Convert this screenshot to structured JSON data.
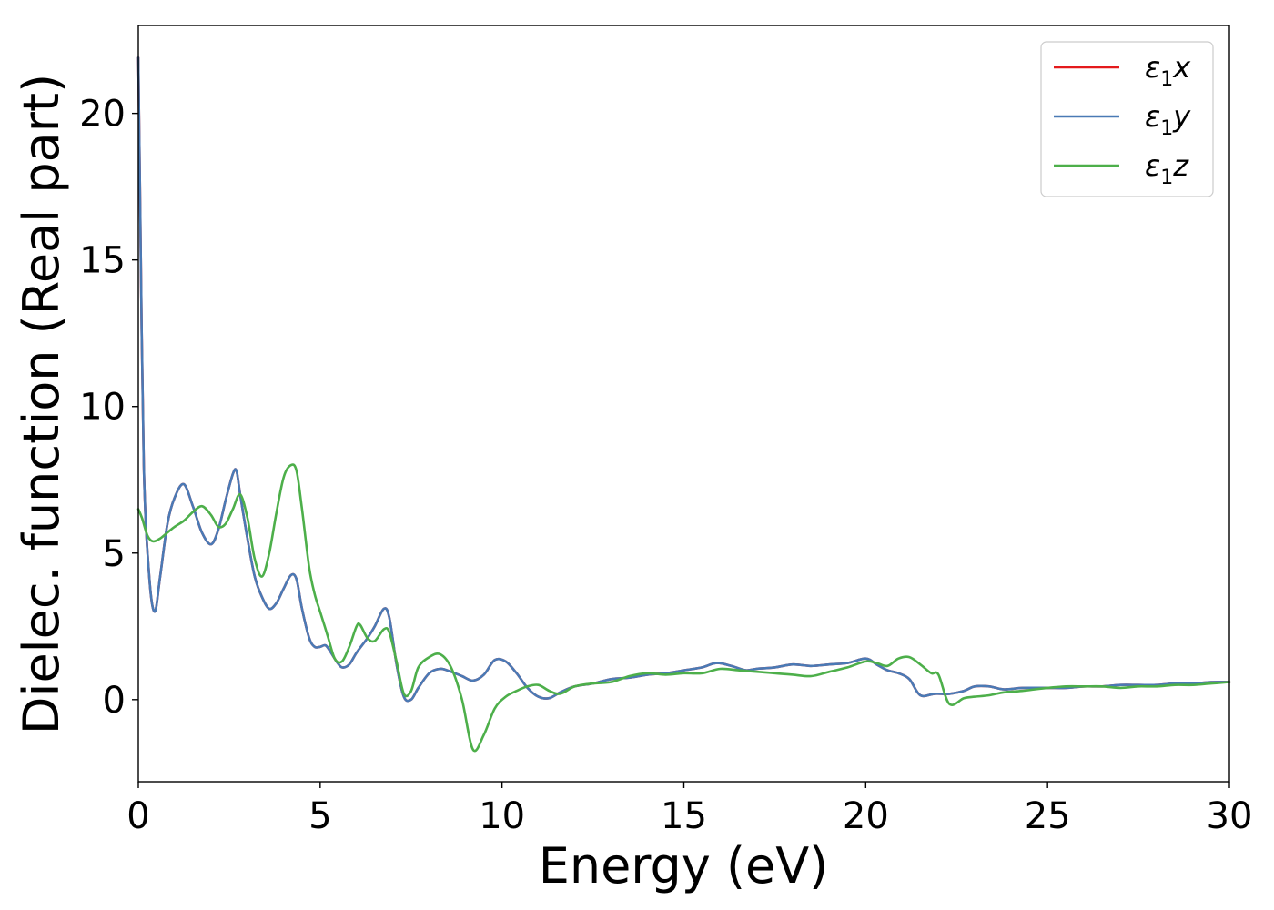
{
  "chart_data": {
    "type": "line",
    "title": "",
    "xlabel": "Energy (eV)",
    "ylabel": "Dielec. function (Real part)",
    "xlim": [
      0,
      30
    ],
    "ylim": [
      -2.8,
      23.0
    ],
    "xticks": [
      0,
      5,
      10,
      15,
      20,
      25,
      30
    ],
    "yticks": [
      0,
      5,
      10,
      15,
      20
    ],
    "grid": false,
    "legend_position": "top-right",
    "series": [
      {
        "name": "ε1x",
        "legend_main": "ε",
        "legend_sub": "1",
        "legend_tail": "x",
        "color": "#e41a1c",
        "x": [
          0.0,
          0.05,
          0.15,
          0.3,
          0.45,
          0.6,
          0.8,
          1.0,
          1.25,
          1.5,
          1.75,
          2.0,
          2.2,
          2.4,
          2.6,
          2.7,
          2.8,
          3.0,
          3.2,
          3.4,
          3.6,
          3.8,
          4.0,
          4.2,
          4.35,
          4.5,
          4.7,
          4.85,
          5.0,
          5.15,
          5.3,
          5.45,
          5.6,
          5.8,
          6.0,
          6.3,
          6.5,
          6.75,
          6.9,
          7.1,
          7.3,
          7.5,
          7.7,
          8.0,
          8.3,
          8.6,
          8.9,
          9.2,
          9.5,
          9.8,
          10.1,
          10.4,
          10.7,
          11.0,
          11.3,
          11.6,
          12.0,
          12.5,
          13.0,
          13.5,
          14.0,
          14.5,
          15.0,
          15.5,
          15.9,
          16.3,
          16.7,
          17.0,
          17.5,
          18.0,
          18.5,
          19.0,
          19.5,
          20.0,
          20.3,
          20.6,
          20.9,
          21.2,
          21.5,
          21.9,
          22.3,
          22.7,
          23.0,
          23.4,
          23.8,
          24.3,
          25.0,
          25.5,
          26.0,
          26.5,
          27.0,
          27.5,
          28.0,
          28.5,
          29.0,
          29.5,
          30.0
        ],
        "y": [
          21.9,
          17.0,
          8.0,
          4.2,
          3.0,
          4.2,
          6.0,
          6.9,
          7.35,
          6.6,
          5.7,
          5.3,
          5.8,
          6.8,
          7.7,
          7.8,
          7.0,
          5.5,
          4.2,
          3.5,
          3.1,
          3.3,
          3.8,
          4.25,
          4.1,
          3.1,
          2.1,
          1.8,
          1.8,
          1.85,
          1.6,
          1.3,
          1.1,
          1.2,
          1.6,
          2.1,
          2.5,
          3.1,
          2.8,
          1.2,
          0.1,
          0.0,
          0.4,
          0.9,
          1.05,
          0.95,
          0.8,
          0.65,
          0.85,
          1.35,
          1.3,
          0.9,
          0.4,
          0.1,
          0.05,
          0.25,
          0.45,
          0.55,
          0.7,
          0.75,
          0.85,
          0.9,
          1.0,
          1.1,
          1.25,
          1.15,
          1.0,
          1.05,
          1.1,
          1.2,
          1.15,
          1.2,
          1.25,
          1.4,
          1.2,
          1.0,
          0.9,
          0.7,
          0.15,
          0.2,
          0.2,
          0.3,
          0.45,
          0.45,
          0.35,
          0.4,
          0.4,
          0.4,
          0.45,
          0.45,
          0.5,
          0.5,
          0.5,
          0.55,
          0.55,
          0.6,
          0.6
        ]
      },
      {
        "name": "ε1y",
        "legend_main": "ε",
        "legend_sub": "1",
        "legend_tail": "y",
        "color": "#4a7ab5",
        "x": [
          0.0,
          0.05,
          0.15,
          0.3,
          0.45,
          0.6,
          0.8,
          1.0,
          1.25,
          1.5,
          1.75,
          2.0,
          2.2,
          2.4,
          2.6,
          2.7,
          2.8,
          3.0,
          3.2,
          3.4,
          3.6,
          3.8,
          4.0,
          4.2,
          4.35,
          4.5,
          4.7,
          4.85,
          5.0,
          5.15,
          5.3,
          5.45,
          5.6,
          5.8,
          6.0,
          6.3,
          6.5,
          6.75,
          6.9,
          7.1,
          7.3,
          7.5,
          7.7,
          8.0,
          8.3,
          8.6,
          8.9,
          9.2,
          9.5,
          9.8,
          10.1,
          10.4,
          10.7,
          11.0,
          11.3,
          11.6,
          12.0,
          12.5,
          13.0,
          13.5,
          14.0,
          14.5,
          15.0,
          15.5,
          15.9,
          16.3,
          16.7,
          17.0,
          17.5,
          18.0,
          18.5,
          19.0,
          19.5,
          20.0,
          20.3,
          20.6,
          20.9,
          21.2,
          21.5,
          21.9,
          22.3,
          22.7,
          23.0,
          23.4,
          23.8,
          24.3,
          25.0,
          25.5,
          26.0,
          26.5,
          27.0,
          27.5,
          28.0,
          28.5,
          29.0,
          29.5,
          30.0
        ],
        "y": [
          21.9,
          17.0,
          8.0,
          4.2,
          3.0,
          4.2,
          6.0,
          6.9,
          7.35,
          6.6,
          5.7,
          5.3,
          5.8,
          6.8,
          7.7,
          7.8,
          7.0,
          5.5,
          4.2,
          3.5,
          3.1,
          3.3,
          3.8,
          4.25,
          4.1,
          3.1,
          2.1,
          1.8,
          1.8,
          1.85,
          1.6,
          1.3,
          1.1,
          1.2,
          1.6,
          2.1,
          2.5,
          3.1,
          2.8,
          1.2,
          0.1,
          0.0,
          0.4,
          0.9,
          1.05,
          0.95,
          0.8,
          0.65,
          0.85,
          1.35,
          1.3,
          0.9,
          0.4,
          0.1,
          0.05,
          0.25,
          0.45,
          0.55,
          0.7,
          0.75,
          0.85,
          0.9,
          1.0,
          1.1,
          1.25,
          1.15,
          1.0,
          1.05,
          1.1,
          1.2,
          1.15,
          1.2,
          1.25,
          1.4,
          1.2,
          1.0,
          0.9,
          0.7,
          0.15,
          0.2,
          0.2,
          0.3,
          0.45,
          0.45,
          0.35,
          0.4,
          0.4,
          0.4,
          0.45,
          0.45,
          0.5,
          0.5,
          0.5,
          0.55,
          0.55,
          0.6,
          0.6
        ]
      },
      {
        "name": "ε1z",
        "legend_main": "ε",
        "legend_sub": "1",
        "legend_tail": "z",
        "color": "#4daf4a",
        "x": [
          0.0,
          0.1,
          0.25,
          0.4,
          0.6,
          0.8,
          1.0,
          1.25,
          1.5,
          1.75,
          2.0,
          2.2,
          2.4,
          2.6,
          2.8,
          3.0,
          3.2,
          3.4,
          3.6,
          3.8,
          4.0,
          4.2,
          4.35,
          4.5,
          4.7,
          4.85,
          5.0,
          5.2,
          5.4,
          5.6,
          5.8,
          6.0,
          6.1,
          6.3,
          6.5,
          6.75,
          6.9,
          7.1,
          7.3,
          7.5,
          7.7,
          8.0,
          8.3,
          8.6,
          8.9,
          9.2,
          9.5,
          9.8,
          10.1,
          10.4,
          10.7,
          11.0,
          11.3,
          11.6,
          12.0,
          12.5,
          13.0,
          13.5,
          14.0,
          14.5,
          15.0,
          15.5,
          16.0,
          16.5,
          17.0,
          17.5,
          18.0,
          18.5,
          19.0,
          19.5,
          20.0,
          20.3,
          20.6,
          20.9,
          21.2,
          21.5,
          21.8,
          22.0,
          22.3,
          22.7,
          23.0,
          23.4,
          23.8,
          24.3,
          25.0,
          25.5,
          26.0,
          26.5,
          27.0,
          27.5,
          28.0,
          28.5,
          29.0,
          29.5,
          30.0
        ],
        "y": [
          6.5,
          6.2,
          5.6,
          5.4,
          5.5,
          5.7,
          5.9,
          6.1,
          6.4,
          6.6,
          6.3,
          5.9,
          6.0,
          6.5,
          7.0,
          6.2,
          4.8,
          4.2,
          5.0,
          6.4,
          7.6,
          8.0,
          7.8,
          6.5,
          4.5,
          3.6,
          3.0,
          2.2,
          1.4,
          1.3,
          1.8,
          2.5,
          2.55,
          2.1,
          2.0,
          2.4,
          2.3,
          1.3,
          0.2,
          0.3,
          1.1,
          1.45,
          1.55,
          1.1,
          0.0,
          -1.7,
          -1.2,
          -0.3,
          0.1,
          0.3,
          0.45,
          0.5,
          0.3,
          0.2,
          0.45,
          0.55,
          0.6,
          0.8,
          0.9,
          0.85,
          0.9,
          0.9,
          1.05,
          1.0,
          0.95,
          0.9,
          0.85,
          0.8,
          0.95,
          1.1,
          1.3,
          1.25,
          1.15,
          1.4,
          1.45,
          1.2,
          0.9,
          0.85,
          -0.15,
          0.05,
          0.1,
          0.15,
          0.25,
          0.3,
          0.4,
          0.45,
          0.45,
          0.45,
          0.4,
          0.45,
          0.45,
          0.5,
          0.5,
          0.55,
          0.6
        ]
      }
    ]
  }
}
